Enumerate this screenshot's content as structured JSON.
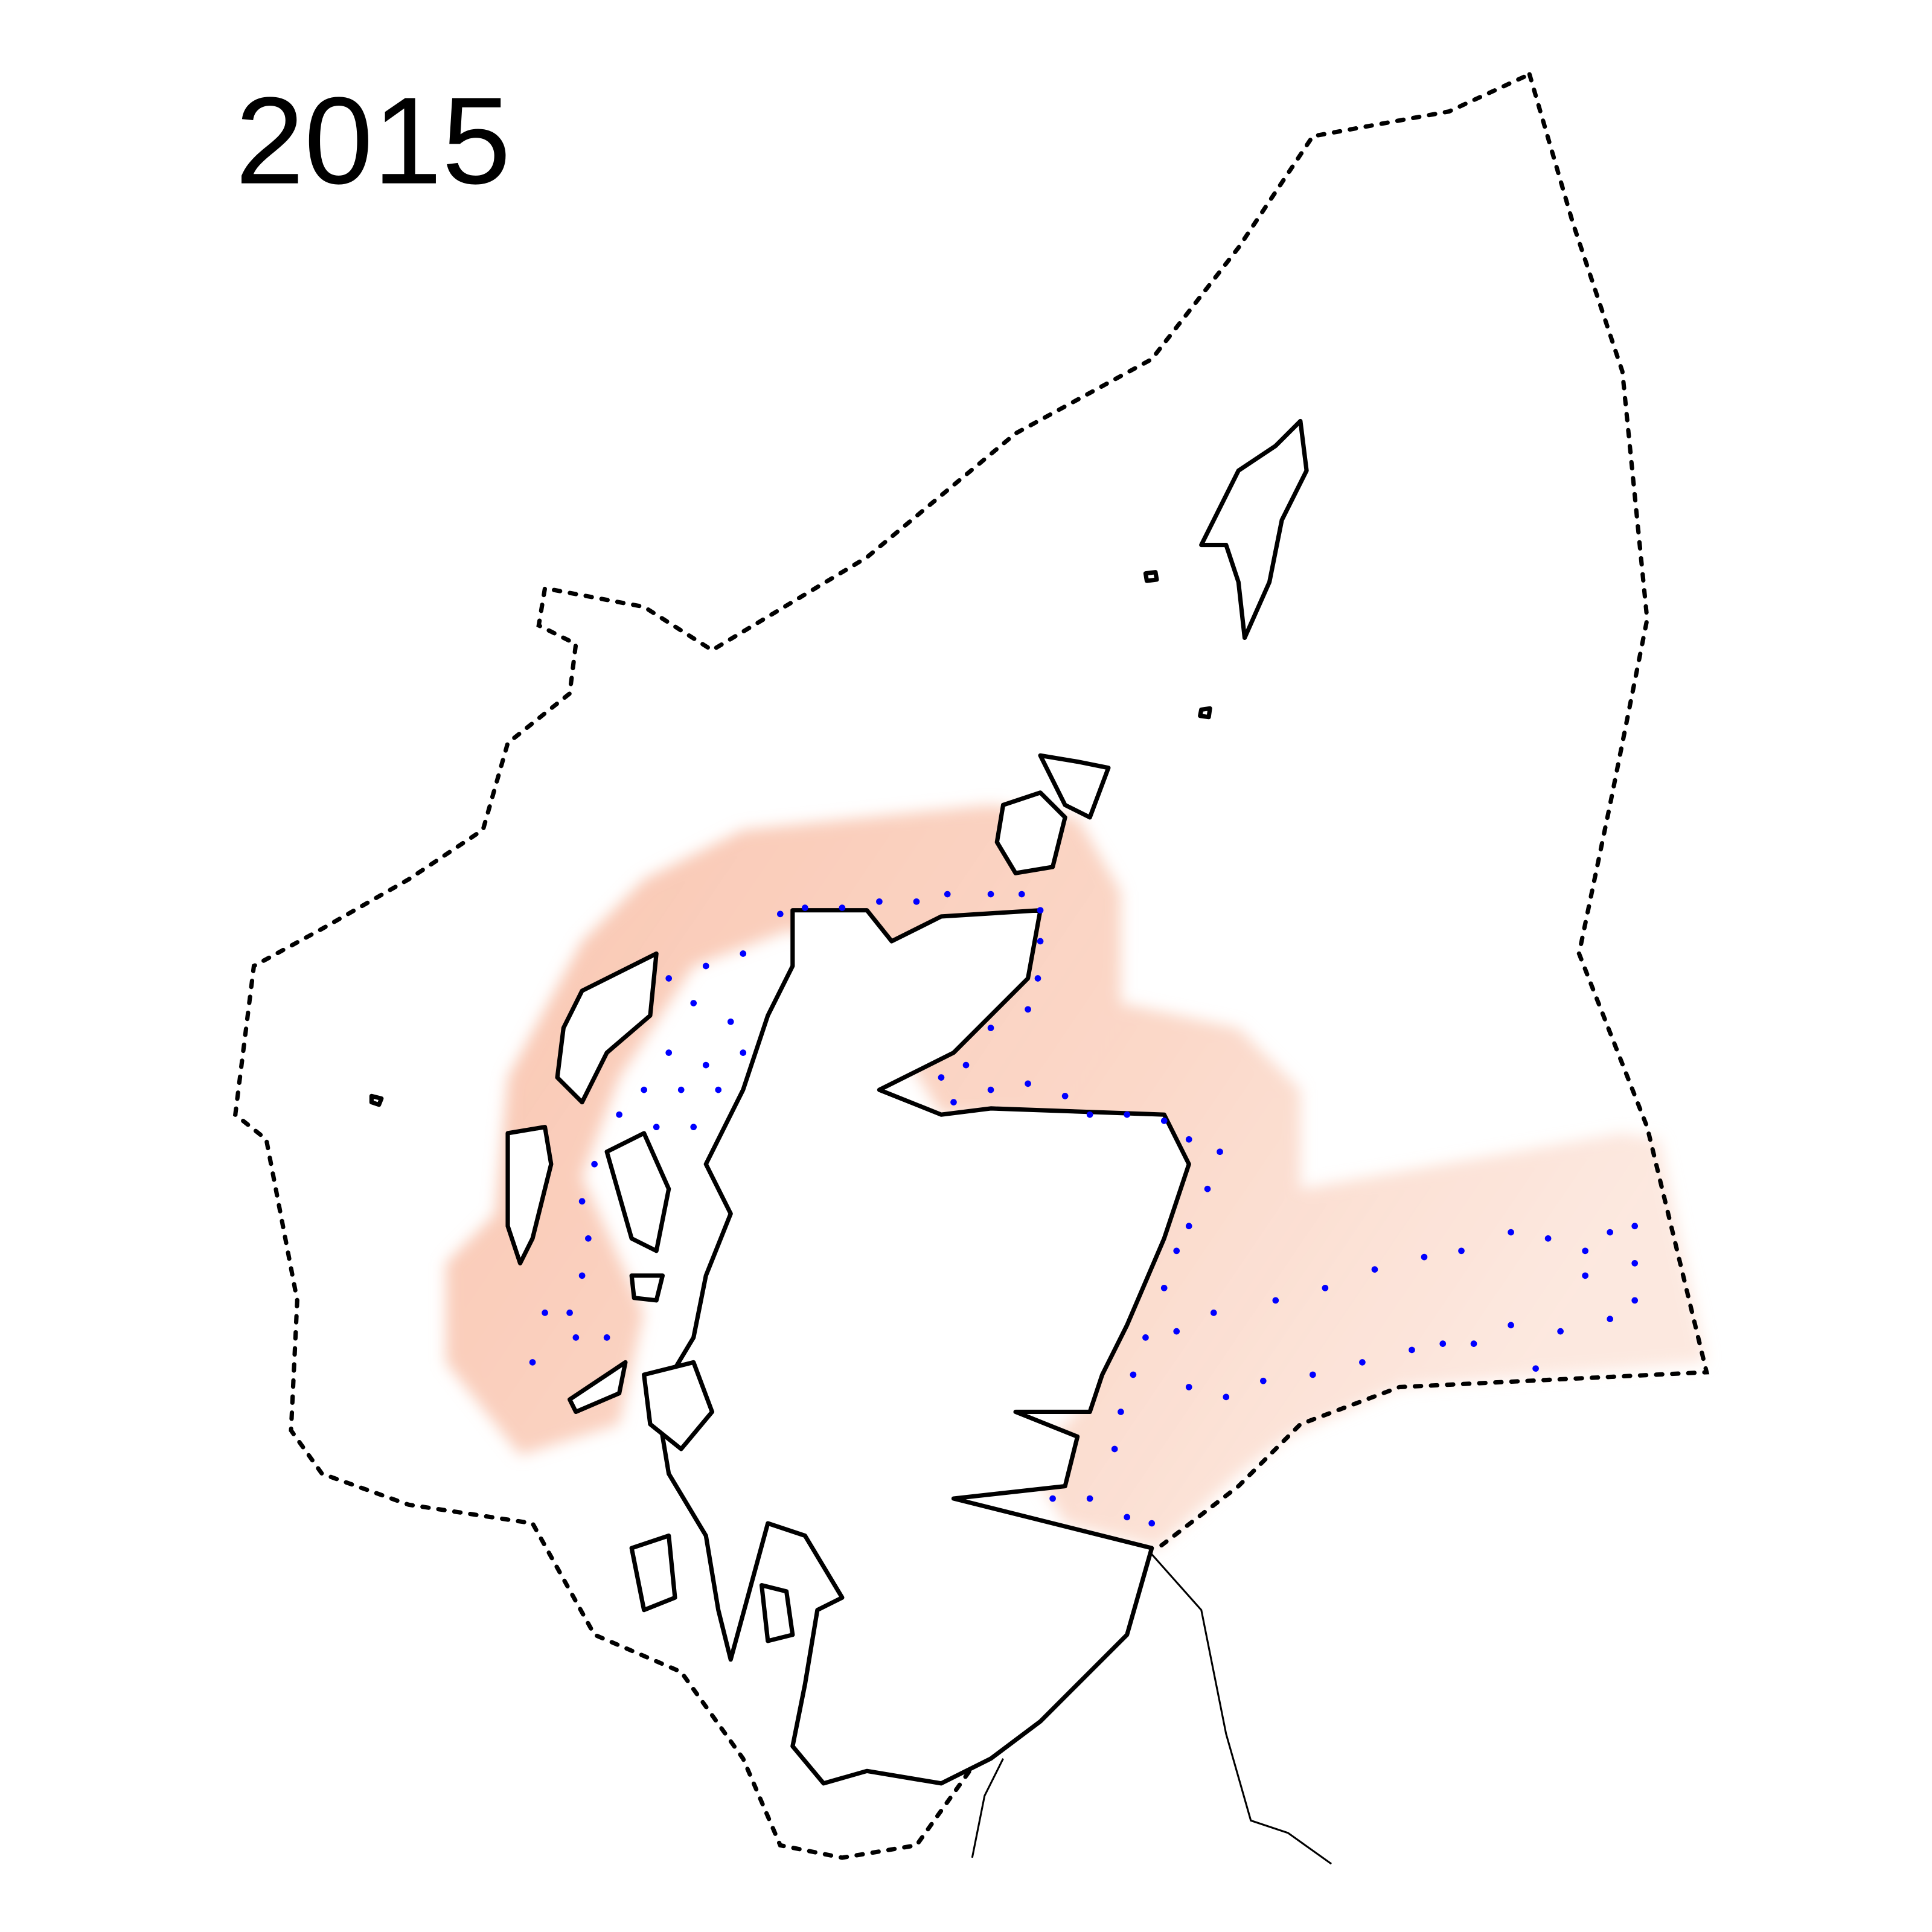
{
  "title": "2015"
}
